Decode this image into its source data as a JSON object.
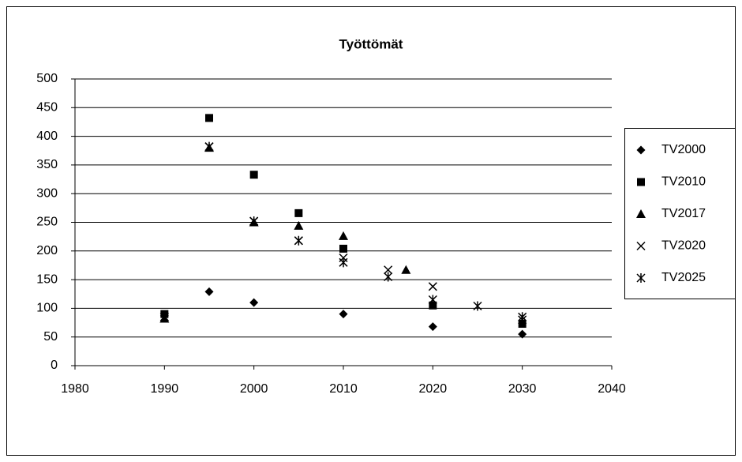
{
  "chart_data": {
    "type": "scatter",
    "title": "Työttömät",
    "xlim": [
      1980,
      2040
    ],
    "xticks": [
      1980,
      1990,
      2000,
      2010,
      2020,
      2030,
      2040
    ],
    "ylim": [
      0,
      500
    ],
    "yticks": [
      0,
      50,
      100,
      150,
      200,
      250,
      300,
      350,
      400,
      450,
      500
    ],
    "grid": true,
    "legend": "right",
    "series": [
      {
        "name": "TV2000",
        "color": "#000000",
        "marker": "diamond",
        "x": [
          1990,
          1995,
          2000,
          2010,
          2020,
          2030
        ],
        "values": [
          87,
          129,
          110,
          90,
          68,
          55
        ]
      },
      {
        "name": "TV2010",
        "color": "#000000",
        "marker": "square",
        "x": [
          1990,
          1995,
          2000,
          2005,
          2010,
          2020,
          2030
        ],
        "values": [
          90,
          432,
          333,
          266,
          204,
          105,
          73
        ]
      },
      {
        "name": "TV2017",
        "color": "#000000",
        "marker": "triangle",
        "x": [
          1990,
          1995,
          2000,
          2005,
          2010,
          2017
        ],
        "values": [
          82,
          380,
          250,
          244,
          226,
          167
        ]
      },
      {
        "name": "TV2020",
        "color": "#000000",
        "marker": "x",
        "x": [
          1990,
          1995,
          2000,
          2005,
          2010,
          2015,
          2020,
          2030
        ],
        "values": [
          85,
          382,
          252,
          218,
          188,
          167,
          138,
          80
        ]
      },
      {
        "name": "TV2025",
        "color": "#000000",
        "marker": "star",
        "x": [
          1990,
          1995,
          2000,
          2005,
          2010,
          2015,
          2020,
          2025,
          2030
        ],
        "values": [
          85,
          382,
          252,
          218,
          180,
          155,
          115,
          104,
          85
        ]
      }
    ]
  }
}
